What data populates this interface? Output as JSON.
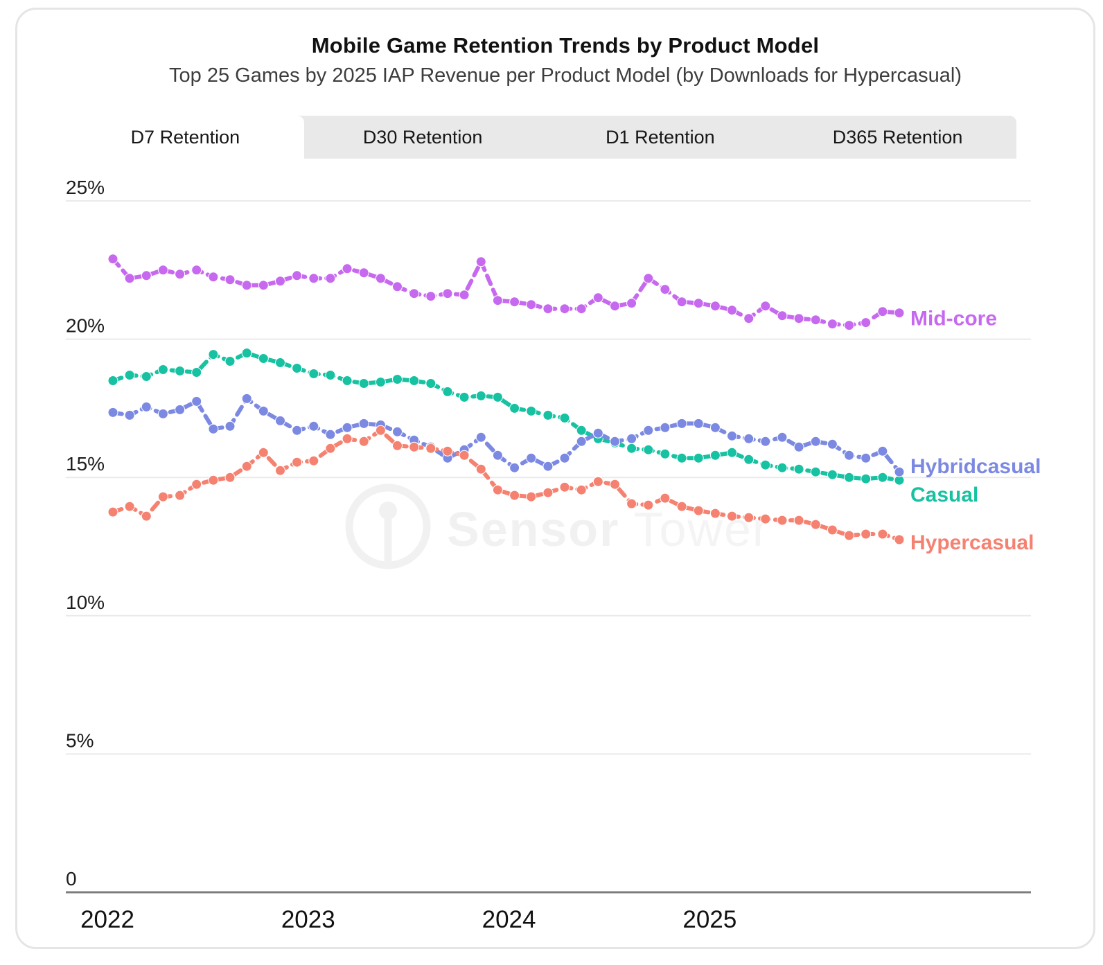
{
  "header": {
    "title": "Mobile Game Retention Trends by Product Model",
    "subtitle": "Top 25 Games by 2025 IAP Revenue per Product Model (by Downloads for Hypercasual)"
  },
  "tabs": [
    {
      "label": "D7 Retention",
      "active": true
    },
    {
      "label": "D30 Retention",
      "active": false
    },
    {
      "label": "D1 Retention",
      "active": false
    },
    {
      "label": "D365 Retention",
      "active": false
    }
  ],
  "watermark": {
    "icon": "sensor-tower-logo",
    "text_bold": "Sensor",
    "text_light": "Tower"
  },
  "chart_data": {
    "type": "line",
    "title": "Mobile Game Retention Trends by Product Model",
    "x_start": "2022-01",
    "x_frequency": "monthly",
    "x_year_ticks": [
      "2022",
      "2023",
      "2024",
      "2025"
    ],
    "y_ticks": [
      {
        "value": 25,
        "label": "25%"
      },
      {
        "value": 20,
        "label": "20%"
      },
      {
        "value": 15,
        "label": "15%"
      },
      {
        "value": 10,
        "label": "10%"
      },
      {
        "value": 5,
        "label": "5%"
      },
      {
        "value": 0,
        "label": "0"
      }
    ],
    "ylim": [
      0,
      26.5
    ],
    "grid": "horizontal",
    "legend_position": "line-end-labels",
    "line_style": "dashed-with-dots",
    "series": [
      {
        "name": "Casual",
        "color": "#16c2a2",
        "values": [
          18.5,
          18.7,
          18.65,
          18.9,
          18.85,
          18.8,
          19.45,
          19.2,
          19.5,
          19.3,
          19.15,
          18.95,
          18.75,
          18.7,
          18.5,
          18.4,
          18.45,
          18.55,
          18.5,
          18.4,
          18.1,
          17.9,
          17.95,
          17.9,
          17.5,
          17.4,
          17.25,
          17.15,
          16.7,
          16.4,
          16.25,
          16.05,
          16.0,
          15.85,
          15.7,
          15.7,
          15.8,
          15.9,
          15.65,
          15.45,
          15.35,
          15.3,
          15.2,
          15.1,
          15.0,
          14.95,
          15.0,
          14.9
        ]
      },
      {
        "name": "Mid-core",
        "color": "#c669ef",
        "values": [
          22.9,
          22.2,
          22.3,
          22.5,
          22.35,
          22.5,
          22.25,
          22.15,
          21.95,
          21.95,
          22.1,
          22.3,
          22.2,
          22.2,
          22.55,
          22.4,
          22.2,
          21.9,
          21.65,
          21.55,
          21.65,
          21.6,
          22.8,
          21.4,
          21.35,
          21.25,
          21.1,
          21.1,
          21.1,
          21.5,
          21.2,
          21.3,
          22.2,
          21.8,
          21.35,
          21.3,
          21.2,
          21.05,
          20.75,
          21.2,
          20.85,
          20.75,
          20.7,
          20.55,
          20.5,
          20.6,
          21.0,
          20.95
        ]
      },
      {
        "name": "Hybridcasual",
        "color": "#7b89e2",
        "values": [
          17.35,
          17.25,
          17.55,
          17.3,
          17.45,
          17.75,
          16.75,
          16.85,
          17.85,
          17.4,
          17.05,
          16.7,
          16.85,
          16.55,
          16.8,
          16.95,
          16.9,
          16.65,
          16.35,
          16.1,
          15.7,
          16.0,
          16.45,
          15.8,
          15.35,
          15.7,
          15.4,
          15.7,
          16.3,
          16.6,
          16.3,
          16.4,
          16.7,
          16.8,
          16.95,
          16.95,
          16.8,
          16.5,
          16.4,
          16.3,
          16.45,
          16.1,
          16.3,
          16.2,
          15.8,
          15.7,
          15.95,
          15.2
        ]
      },
      {
        "name": "Hypercasual",
        "color": "#f58171",
        "values": [
          13.75,
          13.95,
          13.6,
          14.3,
          14.35,
          14.75,
          14.9,
          15.0,
          15.4,
          15.9,
          15.25,
          15.55,
          15.6,
          16.05,
          16.4,
          16.3,
          16.7,
          16.15,
          16.1,
          16.05,
          15.95,
          15.8,
          15.3,
          14.55,
          14.35,
          14.3,
          14.45,
          14.65,
          14.55,
          14.85,
          14.75,
          14.05,
          14.0,
          14.25,
          13.95,
          13.8,
          13.7,
          13.6,
          13.55,
          13.5,
          13.45,
          13.45,
          13.3,
          13.1,
          12.9,
          12.95,
          12.95,
          12.75
        ]
      }
    ]
  }
}
